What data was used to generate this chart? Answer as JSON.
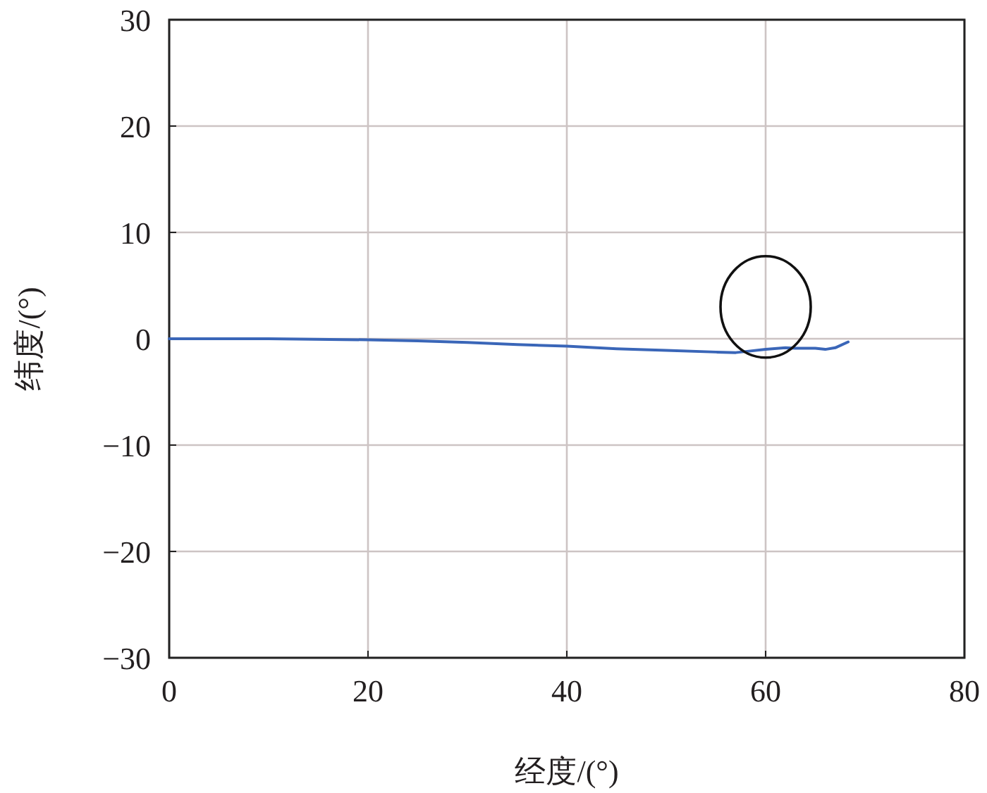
{
  "chart_data": {
    "type": "line",
    "xlabel": "经度/(°)",
    "ylabel": "纬度/(°)",
    "x": [
      0,
      10,
      20,
      25,
      30,
      35,
      40,
      45,
      50,
      55,
      57,
      58,
      60,
      62,
      63,
      65,
      66,
      67,
      68.3
    ],
    "series": [
      {
        "color": "#3a66b8",
        "values": [
          0,
          0,
          -0.1,
          -0.2,
          -0.35,
          -0.55,
          -0.7,
          -0.95,
          -1.1,
          -1.25,
          -1.3,
          -1.2,
          -1.0,
          -0.85,
          -0.9,
          -0.9,
          -1.0,
          -0.85,
          -0.3
        ]
      }
    ],
    "xlim": [
      0,
      80
    ],
    "xticks": [
      0,
      20,
      40,
      60,
      80
    ],
    "ylim": [
      -30,
      30
    ],
    "yticks": [
      -30,
      -20,
      -10,
      0,
      10,
      20,
      30
    ],
    "grid": true
  }
}
